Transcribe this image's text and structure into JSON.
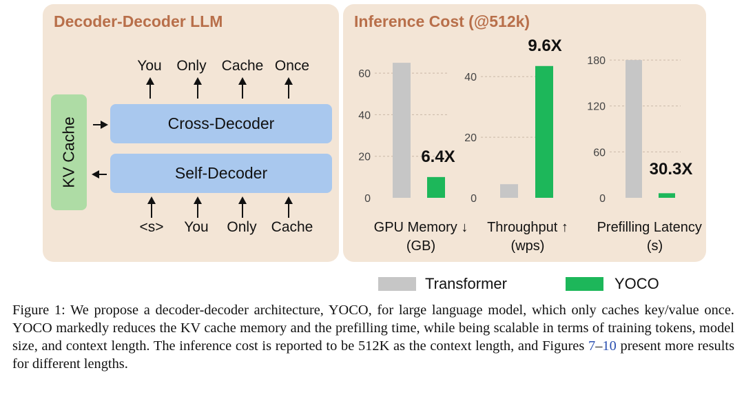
{
  "left_panel": {
    "title": "Decoder-Decoder LLM",
    "output_tokens": [
      "You",
      "Only",
      "Cache",
      "Once"
    ],
    "input_tokens": [
      "<s>",
      "You",
      "Only",
      "Cache"
    ],
    "cross_decoder_label": "Cross-Decoder",
    "self_decoder_label": "Self-Decoder",
    "kv_cache_label": "KV Cache",
    "colors": {
      "panel": "#f3e5d6",
      "title": "#b86f4a",
      "decoder": "#a9c8ee",
      "kv_cache": "#aedca5"
    }
  },
  "right_panel": {
    "title": "Inference Cost (@512k)"
  },
  "chart_data": [
    {
      "type": "bar",
      "categories": [
        "Transformer",
        "YOCO"
      ],
      "values": [
        65,
        10
      ],
      "xlabel": "GPU Memory ↓",
      "xlabel_unit": "(GB)",
      "ylim": [
        0,
        70
      ],
      "yticks": [
        0,
        20,
        40,
        60
      ],
      "annotation": "6.4X",
      "colors": [
        "#c6c6c6",
        "#1db75a"
      ]
    },
    {
      "type": "bar",
      "categories": [
        "Transformer",
        "YOCO"
      ],
      "values": [
        4.5,
        43.5
      ],
      "xlabel": "Throughput ↑",
      "xlabel_unit": "(wps)",
      "ylim": [
        0,
        48
      ],
      "yticks": [
        0,
        20,
        40
      ],
      "annotation": "9.6X",
      "colors": [
        "#c6c6c6",
        "#1db75a"
      ]
    },
    {
      "type": "bar",
      "categories": [
        "Transformer",
        "YOCO"
      ],
      "values": [
        180,
        6
      ],
      "xlabel": "Prefilling Latency ↓",
      "xlabel_unit": "(s)",
      "ylim": [
        0,
        190
      ],
      "yticks": [
        0,
        60,
        120,
        180
      ],
      "annotation": "30.3X",
      "colors": [
        "#c6c6c6",
        "#1db75a"
      ]
    }
  ],
  "legend": [
    {
      "label": "Transformer",
      "color": "#c6c6c6"
    },
    {
      "label": "YOCO",
      "color": "#1db75a"
    }
  ],
  "caption": {
    "part1": "Figure 1: We propose a decoder-decoder architecture, YOCO, for large language model, which only caches key/value once. YOCO markedly reduces the KV cache memory and the prefilling time, while being scalable in terms of training tokens, model size, and context length. The inference cost is reported to be 512K as the context length, and Figures ",
    "ref_start": "7",
    "dash": "–",
    "ref_end": "10",
    "part2": " present more results for different lengths."
  }
}
